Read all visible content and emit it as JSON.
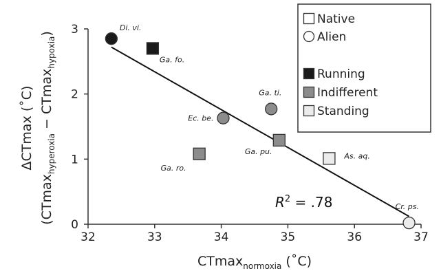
{
  "chart_data": {
    "type": "scatter",
    "xlabel_main": "CTmax",
    "xlabel_sub": "normoxia",
    "xlabel_units": " (˚C)",
    "ylabel_line1_main": "ΔCTmax",
    "ylabel_line1_units": " (˚C)",
    "ylabel_line2_open": "(CTmax",
    "ylabel_line2_sub1": "hyperoxia",
    "ylabel_line2_mid": " − CTmax",
    "ylabel_line2_sub2": "hypoxia",
    "ylabel_line2_close": ")",
    "xlim": [
      32,
      37
    ],
    "ylim": [
      0,
      3
    ],
    "x_ticks": [
      "32",
      "33",
      "34",
      "35",
      "36",
      "37"
    ],
    "y_ticks": [
      "0",
      "1",
      "2",
      "3"
    ],
    "points": [
      {
        "label": "Di. vi.",
        "x": 32.35,
        "y": 2.85,
        "shape": "circle",
        "fill": "#1a1a1a"
      },
      {
        "label": "Ga. fo.",
        "x": 32.97,
        "y": 2.7,
        "shape": "square",
        "fill": "#1a1a1a"
      },
      {
        "label": "Ga. ti.",
        "x": 34.75,
        "y": 1.77,
        "shape": "circle",
        "fill": "#8c8c8c"
      },
      {
        "label": "Ec. be.",
        "x": 34.03,
        "y": 1.63,
        "shape": "circle",
        "fill": "#8c8c8c"
      },
      {
        "label": "Ga. pu.",
        "x": 34.87,
        "y": 1.29,
        "shape": "square",
        "fill": "#8c8c8c"
      },
      {
        "label": "Ga. ro.",
        "x": 33.67,
        "y": 1.08,
        "shape": "square",
        "fill": "#8c8c8c"
      },
      {
        "label": "As. aq.",
        "x": 35.62,
        "y": 1.01,
        "shape": "square",
        "fill": "#ececec"
      },
      {
        "label": "Cr. ps.",
        "x": 36.82,
        "y": 0.02,
        "shape": "circle",
        "fill": "#ececec"
      }
    ],
    "fit_line": {
      "x": [
        32.35,
        36.82
      ],
      "y": [
        2.72,
        0.12
      ]
    },
    "r2_symbol": "R",
    "r2_sup": "2",
    "r2_value": " = .78",
    "legend": {
      "placement": "top-right",
      "items": [
        {
          "label": "Native",
          "shape": "square",
          "fill": "#ffffff"
        },
        {
          "label": "Alien",
          "shape": "circle",
          "fill": "#ffffff"
        },
        {
          "label": "Running",
          "shape": "square",
          "fill": "#1a1a1a"
        },
        {
          "label": "Indifferent",
          "shape": "square",
          "fill": "#8c8c8c"
        },
        {
          "label": "Standing",
          "shape": "square",
          "fill": "#ececec"
        }
      ]
    },
    "grid": false
  }
}
